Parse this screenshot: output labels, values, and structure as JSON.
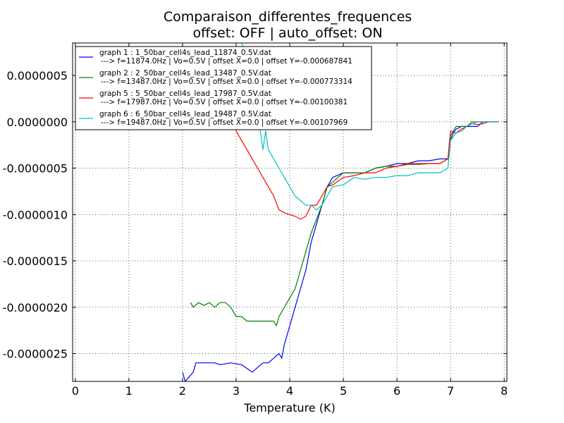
{
  "chart_data": {
    "type": "line",
    "title": "Comparaison_differentes_frequences",
    "subtitle": "offset: OFF | auto_offset: ON",
    "xlabel": "Temperature (K)",
    "ylabel": "",
    "xlim": [
      -0.05,
      8.05
    ],
    "ylim": [
      -2.8e-06,
      8.5e-07
    ],
    "xticks": [
      0,
      1,
      2,
      3,
      4,
      5,
      6,
      7,
      8
    ],
    "xtick_labels": [
      "0",
      "1",
      "2",
      "3",
      "4",
      "5",
      "6",
      "7",
      "8"
    ],
    "yticks": [
      5e-07,
      0.0,
      -5e-07,
      -1e-06,
      -1.5e-06,
      -2e-06,
      -2.5e-06
    ],
    "ytick_labels": [
      "0.0000005",
      "0.0000000",
      "-0.0000005",
      "-0.0000010",
      "-0.0000015",
      "-0.0000020",
      "-0.0000025"
    ],
    "grid": true,
    "legend_position": "top-left",
    "series": [
      {
        "name": "graph 1 : 1_50bar_cell4s_lead_11874_0.5V.dat",
        "detail": "---> f=11874.0Hz | Vo=0.5V | offset X=0.0 | offset Y=-0.000687841",
        "color": "#0000ff",
        "x": [
          2.0,
          2.05,
          2.2,
          2.25,
          2.35,
          2.5,
          2.6,
          2.7,
          2.9,
          3.1,
          3.3,
          3.5,
          3.6,
          3.7,
          3.8,
          3.85,
          3.9,
          4.0,
          4.1,
          4.2,
          4.3,
          4.4,
          4.5,
          4.6,
          4.7,
          4.8,
          5.0,
          5.2,
          5.4,
          5.6,
          5.8,
          6.0,
          6.2,
          6.4,
          6.6,
          6.8,
          6.95,
          7.0,
          7.05,
          7.1,
          7.2,
          7.3,
          7.4,
          7.5,
          7.6,
          7.7,
          7.8,
          7.9
        ],
        "y": [
          -2.7e-06,
          -2.8e-06,
          -2.7e-06,
          -2.6e-06,
          -2.6e-06,
          -2.6e-06,
          -2.6e-06,
          -2.62e-06,
          -2.6e-06,
          -2.62e-06,
          -2.7e-06,
          -2.6e-06,
          -2.6e-06,
          -2.55e-06,
          -2.5e-06,
          -2.55e-06,
          -2.4e-06,
          -2.2e-06,
          -2e-06,
          -1.8e-06,
          -1.6e-06,
          -1.3e-06,
          -1.1e-06,
          -9e-07,
          -7e-07,
          -6e-07,
          -5.5e-07,
          -5.5e-07,
          -5.5e-07,
          -5e-07,
          -4.8e-07,
          -4.5e-07,
          -4.5e-07,
          -4.2e-07,
          -4.2e-07,
          -4e-07,
          -4e-07,
          -2e-07,
          -1.2e-07,
          -8e-08,
          -5e-08,
          -5e-08,
          -5e-08,
          -5e-08,
          0.0,
          0.0,
          0.0,
          0.0
        ]
      },
      {
        "name": "graph 2 : 2_50bar_cell4s_lead_13487_0.5V.dat",
        "detail": "---> f=13487.0Hz | Vo=0.5V | offset X=0.0 | offset Y=-0.000773314",
        "color": "#008000",
        "x": [
          2.15,
          2.2,
          2.3,
          2.4,
          2.5,
          2.6,
          2.7,
          2.8,
          2.9,
          3.0,
          3.1,
          3.2,
          3.3,
          3.4,
          3.5,
          3.6,
          3.7,
          3.75,
          3.8,
          3.9,
          4.0,
          4.1,
          4.2,
          4.3,
          4.4,
          4.5,
          4.6,
          4.7,
          4.8,
          5.0,
          5.2,
          5.4,
          5.6,
          5.8,
          6.0,
          6.2,
          6.4,
          6.6,
          6.8,
          6.95,
          7.0,
          7.05,
          7.1,
          7.2,
          7.3,
          7.4,
          7.5,
          7.6,
          7.7,
          7.8,
          7.9
        ],
        "y": [
          -1.95e-06,
          -2e-06,
          -1.95e-06,
          -1.98e-06,
          -1.95e-06,
          -2e-06,
          -1.95e-06,
          -1.95e-06,
          -2e-06,
          -2.1e-06,
          -2.1e-06,
          -2.15e-06,
          -2.15e-06,
          -2.15e-06,
          -2.15e-06,
          -2.15e-06,
          -2.15e-06,
          -2.2e-06,
          -2.1e-06,
          -2e-06,
          -1.9e-06,
          -1.8e-06,
          -1.6e-06,
          -1.4e-06,
          -1.2e-06,
          -1.05e-06,
          -9e-07,
          -7e-07,
          -6.5e-07,
          -5.5e-07,
          -5.5e-07,
          -5.5e-07,
          -5e-07,
          -4.8e-07,
          -4.8e-07,
          -4.6e-07,
          -4.6e-07,
          -4.5e-07,
          -4.5e-07,
          -4e-07,
          -1.5e-07,
          -1e-07,
          -5e-08,
          -5e-08,
          -5e-08,
          0.0,
          0.0,
          0.0,
          0.0,
          0.0,
          0.0
        ]
      },
      {
        "name": "graph 5 : 5_50bar_cell4s_lead_17987_0.5V.dat",
        "detail": "---> f=17987.0Hz | Vo=0.5V | offset X=0.0 | offset Y=-0.00100381",
        "color": "#ff0000",
        "x": [
          2.9,
          3.0,
          3.1,
          3.2,
          3.3,
          3.4,
          3.5,
          3.6,
          3.7,
          3.8,
          3.9,
          4.0,
          4.1,
          4.2,
          4.3,
          4.4,
          4.5,
          4.6,
          4.7,
          4.8,
          5.0,
          5.2,
          5.4,
          5.6,
          5.8,
          6.0,
          6.2,
          6.4,
          6.6,
          6.8,
          6.95,
          7.0,
          7.1,
          7.2,
          7.3,
          7.4,
          7.5,
          7.6,
          7.7,
          7.8,
          7.9
        ],
        "y": [
          1e-07,
          -1e-07,
          -2e-07,
          -3e-07,
          -4e-07,
          -5e-07,
          -6e-07,
          -7e-07,
          -8e-07,
          -9.5e-07,
          -9.8e-07,
          -1e-06,
          -1.02e-06,
          -1.05e-06,
          -1.02e-06,
          -9e-07,
          -9e-07,
          -8e-07,
          -7e-07,
          -6.8e-07,
          -6e-07,
          -5.8e-07,
          -5.5e-07,
          -5.5e-07,
          -5e-07,
          -4.8e-07,
          -4.5e-07,
          -4.5e-07,
          -4.5e-07,
          -4.5e-07,
          -4e-07,
          -1e-07,
          -1.2e-07,
          -8e-08,
          -5e-08,
          -2e-08,
          -3e-08,
          -2e-08,
          0.0,
          0.0,
          0.0
        ]
      },
      {
        "name": "graph 6 : 6_50bar_cell4s_lead_19487_0.5V.dat",
        "detail": "---> f=19487.0Hz | Vo=0.5V | offset X=0.0 | offset Y=-0.00107969",
        "color": "#00bfbf",
        "x": [
          2.0,
          2.2,
          2.4,
          2.6,
          2.8,
          3.0,
          3.1,
          3.2,
          3.3,
          3.4,
          3.5,
          3.55,
          3.6,
          3.7,
          3.8,
          3.9,
          4.0,
          4.1,
          4.2,
          4.3,
          4.4,
          4.5,
          4.6,
          4.7,
          4.8,
          5.0,
          5.2,
          5.4,
          5.6,
          5.8,
          6.0,
          6.2,
          6.4,
          6.6,
          6.8,
          6.95,
          7.0,
          7.1,
          7.2,
          7.3,
          7.4,
          7.5,
          7.6,
          7.7,
          7.8,
          7.9
        ],
        "y": [
          9e-07,
          9e-07,
          9e-07,
          9e-07,
          9e-07,
          9e-07,
          8.5e-07,
          7e-07,
          4e-07,
          1e-07,
          -3e-07,
          -1e-07,
          -3e-07,
          -4e-07,
          -5e-07,
          -6e-07,
          -7e-07,
          -8e-07,
          -8.5e-07,
          -9e-07,
          -9e-07,
          -9.5e-07,
          -9e-07,
          -8e-07,
          -7e-07,
          -6.8e-07,
          -6e-07,
          -6.2e-07,
          -6e-07,
          -6e-07,
          -5.8e-07,
          -5.8e-07,
          -5.5e-07,
          -5.5e-07,
          -5.5e-07,
          -5e-07,
          -2e-07,
          -1.2e-07,
          -1e-07,
          -5e-08,
          -2e-08,
          0.0,
          0.0,
          0.0,
          0.0,
          0.0
        ]
      }
    ]
  }
}
